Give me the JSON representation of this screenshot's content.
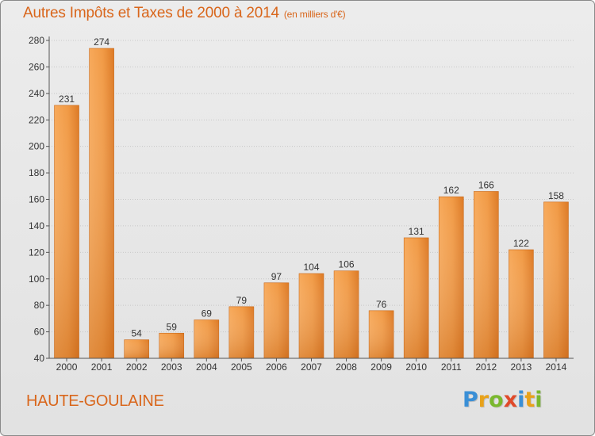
{
  "title": "Autres Impôts et Taxes de 2000 à 2014",
  "unit": "(en milliers d'€)",
  "commune": "HAUTE-GOULAINE",
  "logo": "Proxiti",
  "colors": {
    "title": "#d9661b",
    "bar_light": "#f7a95a",
    "bar_dark": "#d9701a",
    "axis": "#555555"
  },
  "chart_data": {
    "type": "bar",
    "categories": [
      "2000",
      "2001",
      "2002",
      "2003",
      "2004",
      "2005",
      "2006",
      "2007",
      "2008",
      "2009",
      "2010",
      "2011",
      "2012",
      "2013",
      "2014"
    ],
    "values": [
      231,
      274,
      54,
      59,
      69,
      79,
      97,
      104,
      106,
      76,
      131,
      162,
      166,
      122,
      158
    ],
    "ylim": [
      40,
      280
    ],
    "yticks": [
      40,
      60,
      80,
      100,
      120,
      140,
      160,
      180,
      200,
      220,
      240,
      260,
      280
    ],
    "grid": true,
    "xlabel": "",
    "ylabel": ""
  }
}
